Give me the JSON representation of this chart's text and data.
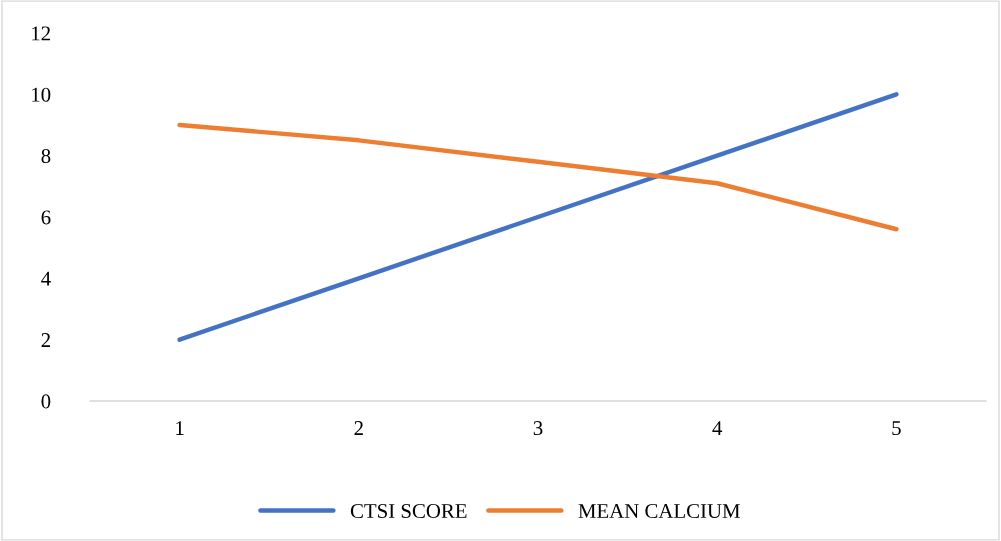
{
  "chart_data": {
    "type": "line",
    "categories": [
      "1",
      "2",
      "3",
      "4",
      "5"
    ],
    "series": [
      {
        "name": "CTSI SCORE",
        "color": "#4472c4",
        "values": [
          2,
          4,
          6,
          8,
          10
        ]
      },
      {
        "name": "MEAN CALCIUM",
        "color": "#ed7d31",
        "values": [
          9.0,
          8.5,
          7.8,
          7.1,
          5.6
        ]
      }
    ],
    "ylim": [
      0,
      12
    ],
    "yticks": [
      0,
      2,
      4,
      6,
      8,
      10,
      12
    ],
    "grid": false,
    "legend": "bottom",
    "marker": "none",
    "line_style": "solid"
  }
}
